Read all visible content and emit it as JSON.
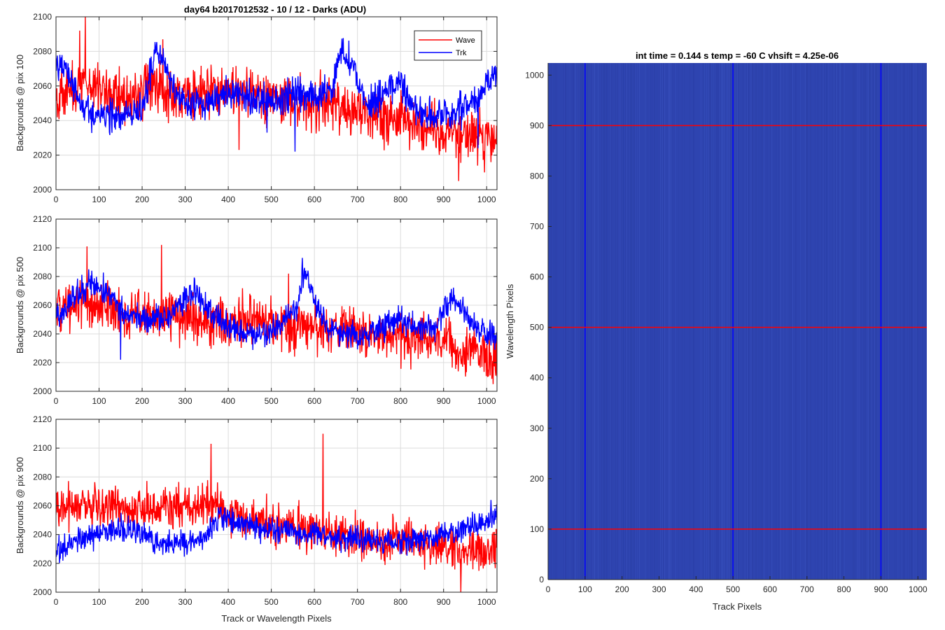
{
  "figure_title": "day64 b2017012532 - 10 / 12 - Darks (ADU)",
  "chart_data": [
    {
      "type": "line",
      "ylabel": "Backgrounds @ pix 100",
      "xlabel": "",
      "xlim": [
        0,
        1024
      ],
      "ylim": [
        2000,
        2100
      ],
      "xticks": [
        0,
        100,
        200,
        300,
        400,
        500,
        600,
        700,
        800,
        900,
        1000
      ],
      "yticks": [
        2000,
        2020,
        2040,
        2060,
        2080,
        2100
      ],
      "grid": true,
      "legend": {
        "location": "top-right",
        "entries": [
          "Wave",
          "Trk"
        ]
      },
      "series": [
        {
          "name": "Wave",
          "color": "#ff0000",
          "x": [
            0,
            40,
            80,
            120,
            160,
            200,
            240,
            280,
            320,
            360,
            400,
            440,
            480,
            520,
            560,
            600,
            640,
            680,
            720,
            760,
            800,
            840,
            880,
            920,
            960,
            1000,
            1024
          ],
          "values": [
            2055,
            2058,
            2062,
            2057,
            2054,
            2056,
            2060,
            2055,
            2053,
            2057,
            2058,
            2056,
            2054,
            2053,
            2050,
            2049,
            2050,
            2046,
            2044,
            2043,
            2040,
            2039,
            2036,
            2034,
            2032,
            2030,
            2030
          ],
          "noise": 16,
          "spikes": [
            [
              68,
              2100
            ],
            [
              248,
              2087
            ],
            [
              55,
              2092
            ],
            [
              425,
              2023
            ],
            [
              935,
              2005
            ],
            [
              995,
              2010
            ]
          ]
        },
        {
          "name": "Trk",
          "color": "#0000ff",
          "x": [
            0,
            20,
            40,
            60,
            100,
            150,
            200,
            230,
            250,
            280,
            320,
            360,
            400,
            440,
            480,
            520,
            560,
            580,
            600,
            640,
            660,
            690,
            720,
            760,
            800,
            840,
            880,
            920,
            960,
            1000,
            1024
          ],
          "values": [
            2070,
            2072,
            2062,
            2048,
            2042,
            2043,
            2046,
            2078,
            2075,
            2052,
            2050,
            2049,
            2056,
            2053,
            2052,
            2052,
            2058,
            2055,
            2053,
            2058,
            2080,
            2072,
            2050,
            2053,
            2063,
            2045,
            2043,
            2045,
            2048,
            2060,
            2070
          ],
          "noise": 10,
          "spikes": [
            [
              490,
              2033
            ],
            [
              555,
              2022
            ],
            [
              980,
              2024
            ]
          ]
        }
      ]
    },
    {
      "type": "line",
      "ylabel": "Backgrounds @ pix 500",
      "xlabel": "",
      "xlim": [
        0,
        1024
      ],
      "ylim": [
        2000,
        2120
      ],
      "xticks": [
        0,
        100,
        200,
        300,
        400,
        500,
        600,
        700,
        800,
        900,
        1000
      ],
      "yticks": [
        2000,
        2020,
        2040,
        2060,
        2080,
        2100,
        2120
      ],
      "grid": true,
      "series": [
        {
          "name": "Wave",
          "color": "#ff0000",
          "x": [
            0,
            50,
            100,
            150,
            200,
            250,
            300,
            350,
            400,
            450,
            500,
            550,
            600,
            650,
            700,
            750,
            800,
            850,
            900,
            950,
            1000,
            1024
          ],
          "values": [
            2055,
            2062,
            2060,
            2055,
            2053,
            2054,
            2052,
            2050,
            2048,
            2050,
            2048,
            2044,
            2045,
            2044,
            2040,
            2038,
            2038,
            2036,
            2033,
            2030,
            2025,
            2020
          ],
          "noise": 18,
          "spikes": [
            [
              72,
              2101
            ],
            [
              245,
              2102
            ],
            [
              540,
              2082
            ],
            [
              1015,
              2005
            ]
          ]
        },
        {
          "name": "Trk",
          "color": "#0000ff",
          "x": [
            0,
            40,
            80,
            120,
            160,
            200,
            240,
            280,
            320,
            360,
            400,
            440,
            480,
            520,
            560,
            580,
            600,
            640,
            680,
            720,
            760,
            800,
            840,
            880,
            920,
            960,
            1000,
            1024
          ],
          "values": [
            2050,
            2065,
            2075,
            2068,
            2055,
            2050,
            2050,
            2058,
            2070,
            2055,
            2045,
            2040,
            2040,
            2045,
            2060,
            2085,
            2062,
            2042,
            2040,
            2040,
            2045,
            2050,
            2045,
            2045,
            2065,
            2050,
            2040,
            2038
          ],
          "noise": 10,
          "spikes": [
            [
              572,
              2093
            ],
            [
              150,
              2022
            ]
          ]
        }
      ]
    },
    {
      "type": "line",
      "ylabel": "Backgrounds @ pix 900",
      "xlabel": "Track or Wavelength Pixels",
      "xlim": [
        0,
        1024
      ],
      "ylim": [
        2000,
        2120
      ],
      "xticks": [
        0,
        100,
        200,
        300,
        400,
        500,
        600,
        700,
        800,
        900,
        1000
      ],
      "yticks": [
        2000,
        2020,
        2040,
        2060,
        2080,
        2100,
        2120
      ],
      "grid": true,
      "series": [
        {
          "name": "Wave",
          "color": "#ff0000",
          "x": [
            0,
            50,
            100,
            150,
            200,
            250,
            300,
            350,
            400,
            450,
            500,
            550,
            600,
            650,
            700,
            750,
            800,
            850,
            900,
            950,
            1000,
            1024
          ],
          "values": [
            2058,
            2060,
            2058,
            2060,
            2058,
            2060,
            2060,
            2062,
            2055,
            2052,
            2048,
            2045,
            2043,
            2040,
            2038,
            2037,
            2035,
            2033,
            2032,
            2030,
            2028,
            2030
          ],
          "noise": 16,
          "spikes": [
            [
              620,
              2110
            ],
            [
              360,
              2103
            ],
            [
              940,
              2000
            ]
          ]
        },
        {
          "name": "Trk",
          "color": "#0000ff",
          "x": [
            0,
            50,
            100,
            150,
            200,
            250,
            300,
            350,
            380,
            400,
            450,
            500,
            550,
            600,
            650,
            700,
            750,
            800,
            850,
            900,
            950,
            1000,
            1024
          ],
          "values": [
            2030,
            2035,
            2040,
            2045,
            2040,
            2032,
            2035,
            2040,
            2055,
            2050,
            2045,
            2043,
            2042,
            2040,
            2038,
            2037,
            2036,
            2035,
            2036,
            2040,
            2045,
            2048,
            2055
          ],
          "noise": 9,
          "spikes": [
            [
              1010,
              2064
            ]
          ]
        }
      ]
    },
    {
      "type": "heatmap",
      "title": "int time = 0.144 s   temp = -60 C   vhsift = 4.25e-06",
      "xlabel": "Track Pixels",
      "ylabel": "Wavelength Pixels",
      "xlim": [
        0,
        1024
      ],
      "ylim": [
        0,
        1024
      ],
      "xticks": [
        0,
        100,
        200,
        300,
        400,
        500,
        600,
        700,
        800,
        900,
        1000
      ],
      "yticks": [
        0,
        100,
        200,
        300,
        400,
        500,
        600,
        700,
        800,
        900,
        1000
      ],
      "base_color": "#2e44b0",
      "vertical_markers": {
        "x": [
          100,
          500,
          900
        ],
        "color": "#0000ff"
      },
      "horizontal_markers": {
        "y": [
          100,
          500,
          900
        ],
        "color": "#ff0000"
      }
    }
  ]
}
